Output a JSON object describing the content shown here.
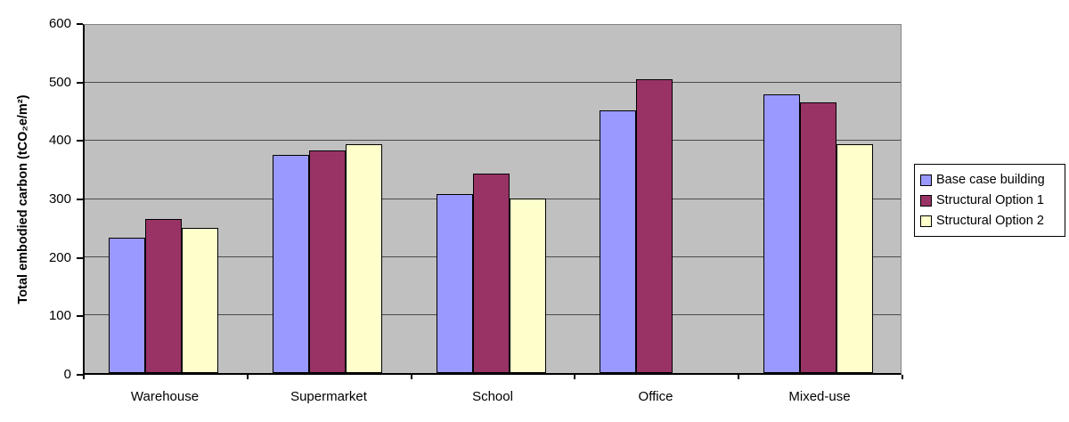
{
  "chart_data": {
    "type": "bar",
    "title": "",
    "xlabel": "",
    "ylabel": "Total embodied carbon (tCO₂e/m²)",
    "ylim": [
      0,
      600
    ],
    "yticks": [
      0,
      100,
      200,
      300,
      400,
      500,
      600
    ],
    "categories": [
      "Warehouse",
      "Supermarket",
      "School",
      "Office",
      "Mixed-use"
    ],
    "series": [
      {
        "name": "Base case building",
        "color": "#9999FF",
        "values": [
          233,
          376,
          308,
          452,
          480
        ]
      },
      {
        "name": "Structural Option 1",
        "color": "#993366",
        "values": [
          266,
          384,
          344,
          507,
          467
        ]
      },
      {
        "name": "Structural Option 2",
        "color": "#FFFFCC",
        "values": [
          250,
          395,
          301,
          0,
          395
        ]
      }
    ],
    "grid": true,
    "legend_position": "right",
    "colors": {
      "plot_background": "#C0C0C0",
      "plot_border": "#848484",
      "gridline": "#4A4A4A",
      "axis": "#000000",
      "bar_border": "#000000",
      "legend_background": "#FFFFFF",
      "legend_border": "#000000",
      "text": "#000000",
      "page_background": "#FFFFFF"
    }
  }
}
